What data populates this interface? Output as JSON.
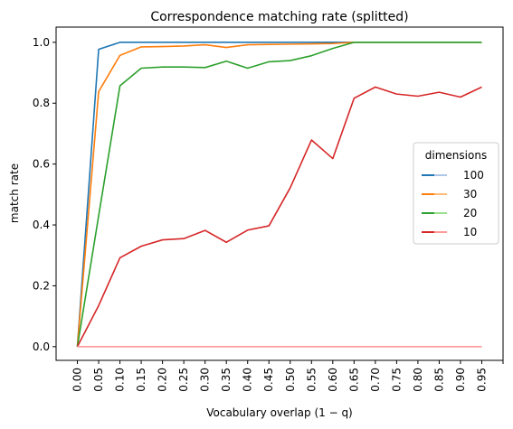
{
  "chart_data": {
    "type": "line",
    "title": "Correspondence matching rate (splitted)",
    "xlabel": "Vocabulary overlap (1 − q)",
    "ylabel": "match rate",
    "x": [
      0.0,
      0.05,
      0.1,
      0.15,
      0.2,
      0.25,
      0.3,
      0.35,
      0.4,
      0.45,
      0.5,
      0.55,
      0.6,
      0.65,
      0.7,
      0.75,
      0.8,
      0.85,
      0.9,
      0.95
    ],
    "x_tick_labels": [
      "0.00",
      "0.05",
      "0.10",
      "0.15",
      "0.20",
      "0.25",
      "0.30",
      "0.35",
      "0.40",
      "0.45",
      "0.50",
      "0.55",
      "0.60",
      "0.65",
      "0.70",
      "0.75",
      "0.80",
      "0.85",
      "0.90",
      "0.95"
    ],
    "xlim": [
      -0.05,
      1.0
    ],
    "ylim": [
      -0.045,
      1.05
    ],
    "y_ticks": [
      0.0,
      0.2,
      0.4,
      0.6,
      0.8,
      1.0
    ],
    "y_tick_labels": [
      "0.0",
      "0.2",
      "0.4",
      "0.6",
      "0.8",
      "1.0"
    ],
    "legend": {
      "title": "dimensions",
      "placement": "center-right"
    },
    "grid": false,
    "series": [
      {
        "name": "100",
        "line_color": "#1f77b4",
        "legend_swatch_dim": "#aec7e8",
        "values": [
          0.0,
          0.977,
          1.0,
          1.0,
          1.0,
          1.0,
          1.0,
          1.0,
          1.0,
          1.0,
          1.0,
          1.0,
          1.0,
          1.0,
          1.0,
          1.0,
          1.0,
          1.0,
          1.0,
          1.0
        ]
      },
      {
        "name": "30",
        "line_color": "#ff7f0e",
        "legend_swatch_dim": "#ffbb78",
        "values": [
          0.0,
          0.838,
          0.957,
          0.985,
          0.986,
          0.988,
          0.992,
          0.983,
          0.992,
          0.993,
          0.994,
          0.995,
          0.996,
          1.0,
          1.0,
          1.0,
          1.0,
          1.0,
          1.0,
          1.0
        ]
      },
      {
        "name": "20",
        "line_color": "#2ca02c",
        "legend_swatch_dim": "#98df8a",
        "values": [
          0.0,
          0.43,
          0.857,
          0.915,
          0.919,
          0.919,
          0.917,
          0.938,
          0.915,
          0.936,
          0.94,
          0.956,
          0.98,
          1.0,
          1.0,
          1.0,
          1.0,
          1.0,
          1.0,
          1.0
        ]
      },
      {
        "name": "10",
        "line_color": "#d62728",
        "legend_swatch_dim": "#ff9896",
        "values": [
          0.0,
          0.135,
          0.292,
          0.33,
          0.351,
          0.355,
          0.382,
          0.343,
          0.383,
          0.397,
          0.522,
          0.679,
          0.618,
          0.816,
          0.853,
          0.83,
          0.823,
          0.836,
          0.82,
          0.853
        ]
      },
      {
        "name": "",
        "line_color": "#ff9896",
        "legend_swatch_dim": "",
        "values": [
          0.0,
          0.0,
          0.0,
          0.0,
          0.0,
          0.0,
          0.0,
          0.0,
          0.0,
          0.0,
          0.0,
          0.0,
          0.0,
          0.0,
          0.0,
          0.0,
          0.0,
          0.0,
          0.0,
          0.0
        ]
      }
    ]
  }
}
